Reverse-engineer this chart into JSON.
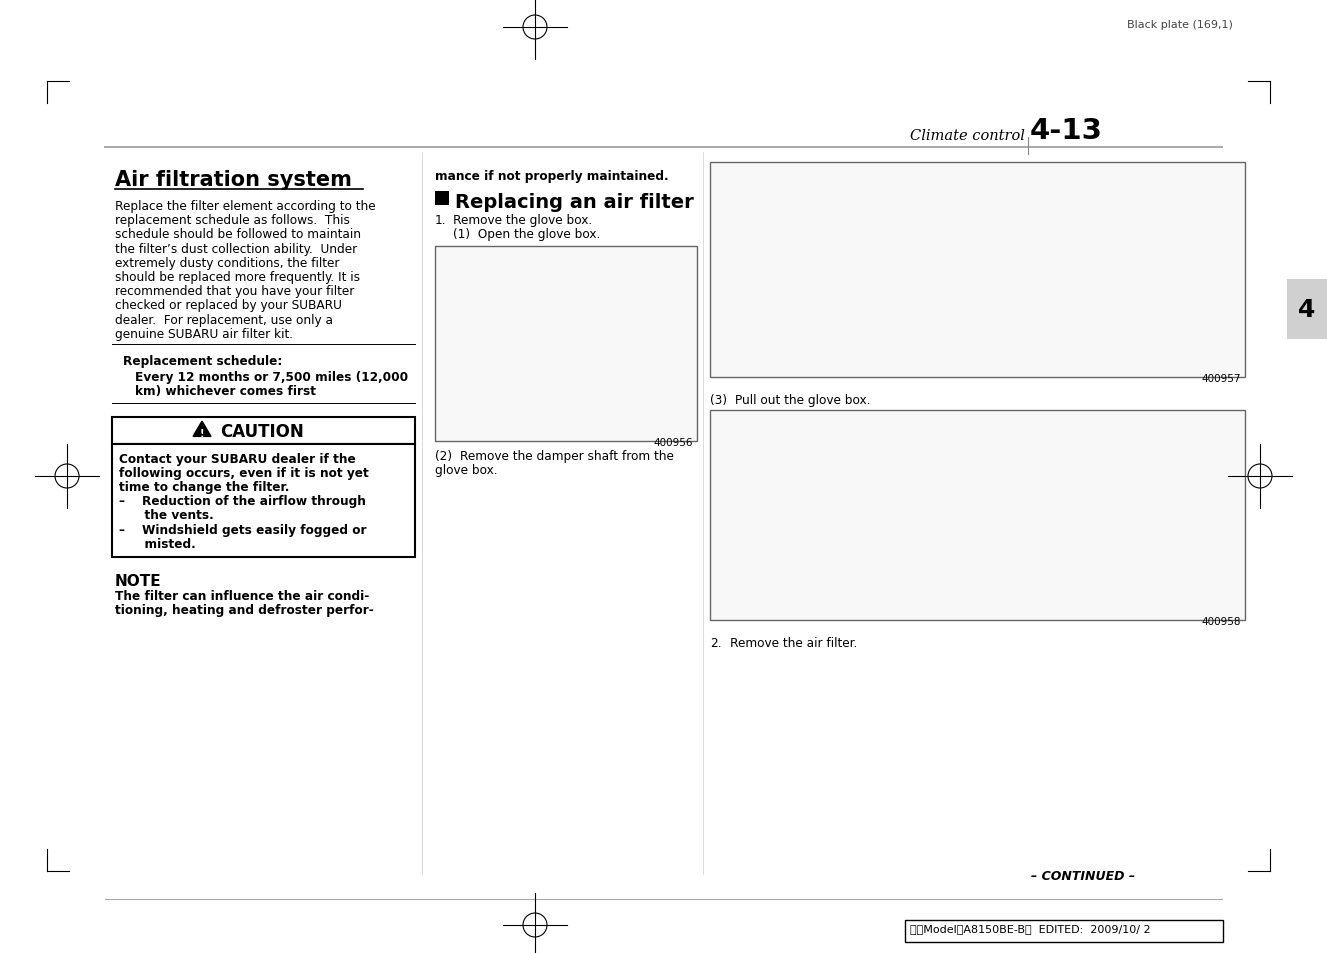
{
  "page_bg": "#ffffff",
  "header_text": "Black plate (169,1)",
  "section_label": "Climate control",
  "page_number": "4-13",
  "tab_number": "4",
  "title": "Air filtration system",
  "body_text_col1": [
    "Replace the filter element according to the",
    "replacement schedule as follows.  This",
    "schedule should be followed to maintain",
    "the filter’s dust collection ability.  Under",
    "extremely dusty conditions, the filter",
    "should be replaced more frequently. It is",
    "recommended that you have your filter",
    "checked or replaced by your SUBARU",
    "dealer.  For replacement, use only a",
    "genuine SUBARU air filter kit."
  ],
  "replacement_schedule_label": "Replacement schedule:",
  "repl_line1": "Every 12 months or 7,500 miles (12,000",
  "repl_line2": "km) whichever comes first",
  "caution_title": "CAUTION",
  "caution_body_line1": "Contact your SUBARU dealer if the",
  "caution_body_line2": "following occurs, even if it is not yet",
  "caution_body_line3": "time to change the filter.",
  "caution_bullet1a": "–    Reduction of the airflow through",
  "caution_bullet1b": "      the vents.",
  "caution_bullet2a": "–    Windshield gets easily fogged or",
  "caution_bullet2b": "      misted.",
  "note_title": "NOTE",
  "note_line1": "The filter can influence the air condi-",
  "note_line2": "tioning, heating and defroster perfor-",
  "col2_top": "mance if not properly maintained.",
  "replacing_title": "Replacing an air filter",
  "step1_num": "1.",
  "step1_text": "Remove the glove box.",
  "step1a_text": "(1)  Open the glove box.",
  "fig1_number": "400956",
  "fig1_caption1": "(2)  Remove the damper shaft from the",
  "fig1_caption2": "glove box.",
  "fig2_number": "400957",
  "pull_out_text": "(3)  Pull out the glove box.",
  "fig3_number": "400958",
  "step2_num": "2.",
  "step2_text": "Remove the air filter.",
  "continued": "– CONTINUED –",
  "footer_text": "北米ModelＢA8150BE-B＂  EDITED:  2009/10/ 2",
  "crosshair_color": "#000000",
  "tab_bg_color": "#d0d0d0",
  "line_gray": "#aaaaaa",
  "border_color": "#000000"
}
